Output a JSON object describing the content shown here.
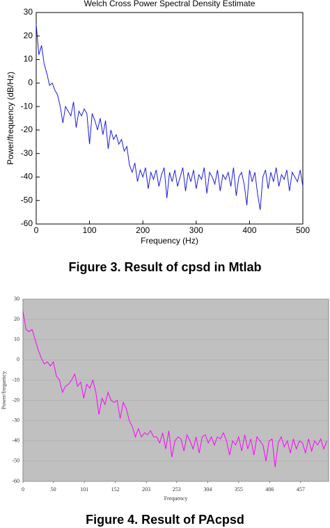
{
  "chart_data": [
    {
      "type": "line",
      "title": "Welch Cross Power Spectral Density Estimate",
      "xlabel": "Frequency (Hz)",
      "ylabel": "Power/frequency (dB/Hz)",
      "caption": "Figure 3. Result of cpsd in Mtlab",
      "color": "#1a1adc",
      "grid": false,
      "xlim": [
        0,
        500
      ],
      "xticks": [
        0,
        100,
        200,
        300,
        400,
        500
      ],
      "ylim": [
        -60,
        30
      ],
      "yticks": [
        -60,
        -50,
        -40,
        -30,
        -20,
        -10,
        0,
        10,
        20,
        30
      ],
      "x": [
        0,
        5,
        10,
        15,
        20,
        25,
        30,
        35,
        40,
        45,
        50,
        55,
        60,
        65,
        70,
        75,
        80,
        85,
        90,
        95,
        100,
        105,
        110,
        115,
        120,
        125,
        130,
        135,
        140,
        145,
        150,
        155,
        160,
        165,
        170,
        175,
        180,
        185,
        190,
        195,
        200,
        205,
        210,
        215,
        220,
        225,
        230,
        235,
        240,
        245,
        250,
        255,
        260,
        265,
        270,
        275,
        280,
        285,
        290,
        295,
        300,
        305,
        310,
        315,
        320,
        325,
        330,
        335,
        340,
        345,
        350,
        355,
        360,
        365,
        370,
        375,
        380,
        385,
        390,
        395,
        400,
        405,
        410,
        415,
        420,
        425,
        430,
        435,
        440,
        445,
        450,
        455,
        460,
        465,
        470,
        475,
        480,
        485,
        490,
        495,
        500
      ],
      "values": [
        25,
        12,
        16,
        8,
        4,
        -1,
        0,
        -3,
        -5,
        -10,
        -17,
        -10,
        -12,
        -14,
        -8,
        -19,
        -12,
        -14,
        -11,
        -13,
        -26,
        -13,
        -16,
        -20,
        -15,
        -22,
        -16,
        -28,
        -20,
        -24,
        -22,
        -26,
        -24,
        -29,
        -27,
        -35,
        -38,
        -34,
        -42,
        -37,
        -40,
        -36,
        -45,
        -38,
        -41,
        -37,
        -44,
        -39,
        -36,
        -49,
        -38,
        -42,
        -37,
        -44,
        -40,
        -36,
        -46,
        -38,
        -42,
        -37,
        -45,
        -39,
        -41,
        -36,
        -47,
        -38,
        -40,
        -43,
        -37,
        -46,
        -39,
        -41,
        -38,
        -44,
        -36,
        -48,
        -40,
        -38,
        -43,
        -52,
        -37,
        -42,
        -38,
        -47,
        -54,
        -40,
        -37,
        -45,
        -38,
        -42,
        -36,
        -44,
        -39,
        -41,
        -37,
        -46,
        -38,
        -40,
        -42,
        -37,
        -44
      ]
    },
    {
      "type": "line",
      "xlabel": "Frequency",
      "ylabel": "Power/frequency",
      "caption": "Figure 4. Result of PAcpsd",
      "color": "#ff00ff",
      "grid": true,
      "xlim": [
        0,
        503
      ],
      "xticks": [
        0,
        50,
        101,
        152,
        203,
        253,
        304,
        355,
        406,
        457
      ],
      "ylim": [
        -60,
        30
      ],
      "yticks": [
        -60,
        -50,
        -40,
        -30,
        -20,
        -10,
        0,
        10,
        20,
        30
      ],
      "x": [
        0,
        5,
        10,
        15,
        20,
        25,
        30,
        35,
        40,
        45,
        50,
        55,
        60,
        65,
        70,
        75,
        80,
        85,
        90,
        95,
        100,
        105,
        110,
        115,
        120,
        125,
        130,
        135,
        140,
        145,
        150,
        155,
        160,
        165,
        170,
        175,
        180,
        185,
        190,
        195,
        200,
        205,
        210,
        215,
        220,
        225,
        230,
        235,
        240,
        245,
        250,
        255,
        260,
        265,
        270,
        275,
        280,
        285,
        290,
        295,
        300,
        305,
        310,
        315,
        320,
        325,
        330,
        335,
        340,
        345,
        350,
        355,
        360,
        365,
        370,
        375,
        380,
        385,
        390,
        395,
        400,
        405,
        410,
        415,
        420,
        425,
        430,
        435,
        440,
        445,
        450,
        455,
        460,
        465,
        470,
        475,
        480,
        485,
        490,
        495,
        500
      ],
      "values": [
        24,
        15,
        14,
        15,
        10,
        5,
        1,
        -2,
        -1,
        -3,
        -1,
        -8,
        -10,
        -16,
        -13,
        -12,
        -10,
        -7,
        -13,
        -11,
        -19,
        -12,
        -14,
        -10,
        -16,
        -27,
        -19,
        -22,
        -16,
        -20,
        -21,
        -20,
        -29,
        -21,
        -24,
        -30,
        -33,
        -38,
        -34,
        -38,
        -36,
        -37,
        -35,
        -38,
        -38,
        -41,
        -36,
        -44,
        -35,
        -48,
        -40,
        -38,
        -39,
        -45,
        -37,
        -40,
        -44,
        -38,
        -46,
        -38,
        -37,
        -41,
        -38,
        -42,
        -38,
        -39,
        -36,
        -40,
        -47,
        -40,
        -42,
        -38,
        -45,
        -37,
        -44,
        -39,
        -47,
        -38,
        -40,
        -42,
        -50,
        -40,
        -39,
        -53,
        -41,
        -38,
        -43,
        -40,
        -46,
        -39,
        -44,
        -40,
        -41,
        -46,
        -39,
        -45,
        -40,
        -42,
        -39,
        -44,
        -40
      ]
    }
  ]
}
